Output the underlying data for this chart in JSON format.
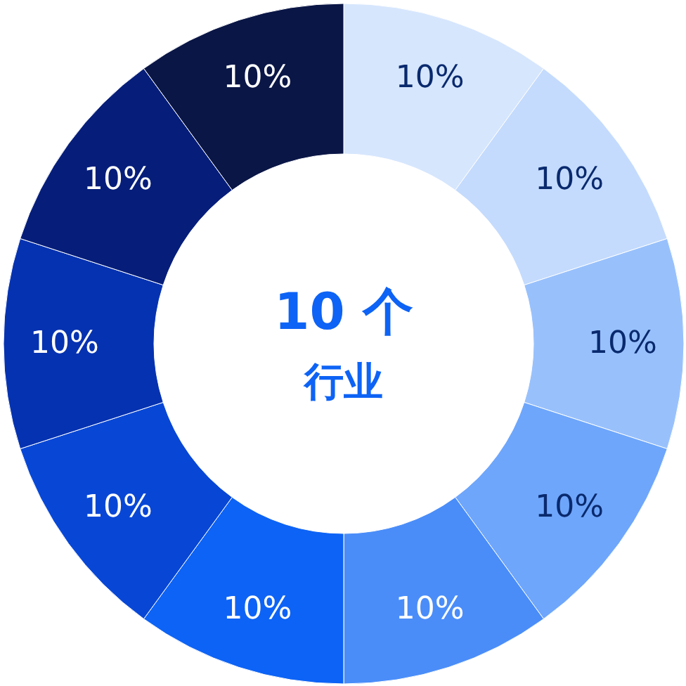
{
  "chart_data": {
    "type": "donut",
    "title": "10 个",
    "subtitle": "行业",
    "categories": [
      null,
      null,
      null,
      null,
      null,
      null,
      null,
      null,
      null,
      null
    ],
    "values": [
      10,
      10,
      10,
      10,
      10,
      10,
      10,
      10,
      10,
      10
    ],
    "value_labels": [
      "10%",
      "10%",
      "10%",
      "10%",
      "10%",
      "10%",
      "10%",
      "10%",
      "10%",
      "10%"
    ],
    "colors": [
      "#d6e6fd",
      "#c4dbfd",
      "#98c1fc",
      "#6ea6fb",
      "#4a8df9",
      "#0d63f5",
      "#0847d6",
      "#0532b0",
      "#061e7a",
      "#0a1646"
    ]
  }
}
